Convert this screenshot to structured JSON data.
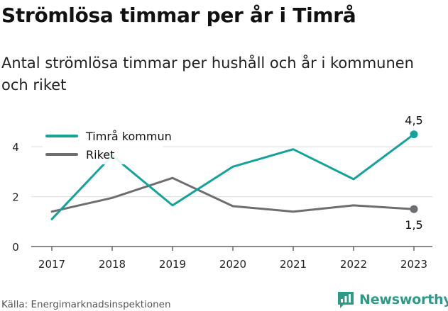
{
  "title": "Strömlösa timmar per år i Timrå",
  "subtitle": "Antal strömlösa timmar per hushåll och år i kommunen och riket",
  "source": "Källa: Energimarknadsinspektionen",
  "brand": {
    "name": "Newsworthy",
    "logo_icon": "bar-chart-speech-bubble-icon",
    "color": "#2d9a88"
  },
  "chart_data": {
    "type": "line",
    "categories": [
      "2017",
      "2018",
      "2019",
      "2020",
      "2021",
      "2022",
      "2023"
    ],
    "ylim": [
      0,
      4.8
    ],
    "yticks": [
      0,
      2,
      4
    ],
    "ytick_labels": [
      "0",
      "2",
      "4"
    ],
    "grid": true,
    "legend_position": "top-left",
    "series": [
      {
        "name": "Timrå kommun",
        "color": "#13a39b",
        "values": [
          1.1,
          3.65,
          1.65,
          3.2,
          3.9,
          2.7,
          4.5
        ],
        "end_label": "4,5"
      },
      {
        "name": "Riket",
        "color": "#6d6d72",
        "values": [
          1.4,
          1.95,
          2.75,
          1.62,
          1.4,
          1.65,
          1.5
        ],
        "end_label": "1,5"
      }
    ]
  }
}
